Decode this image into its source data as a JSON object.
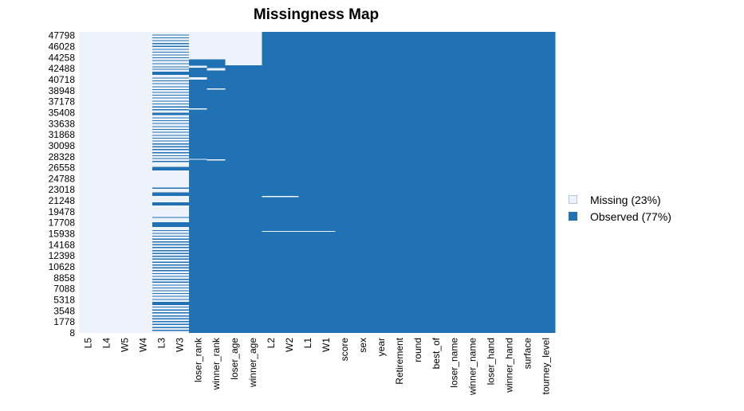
{
  "chart_data": {
    "type": "heatmap",
    "title": "Missingness Map",
    "xlabel": "",
    "ylabel": "",
    "columns": [
      "L5",
      "L4",
      "W5",
      "W4",
      "L3",
      "W3",
      "loser_rank",
      "winner_rank",
      "loser_age",
      "winner_age",
      "L2",
      "W2",
      "L1",
      "W1",
      "score",
      "sex",
      "year",
      "Retirement",
      "round",
      "best_of",
      "loser_name",
      "winner_name",
      "loser_hand",
      "winner_hand",
      "surface",
      "tourney_level"
    ],
    "row_range": [
      1,
      48400
    ],
    "ytick_labels": [
      "47798",
      "46028",
      "44258",
      "42488",
      "40718",
      "38948",
      "37178",
      "35408",
      "33638",
      "31868",
      "30098",
      "28328",
      "26558",
      "24788",
      "23018",
      "21248",
      "19478",
      "17708",
      "15938",
      "14168",
      "12398",
      "10628",
      "8858",
      "7088",
      "5318",
      "3548",
      "1778",
      "8"
    ],
    "colors": {
      "missing": "#edf2fb",
      "observed": "#2171b5"
    },
    "legend": {
      "position": "right",
      "entries": [
        {
          "key": "missing",
          "label": "Missing (23%)"
        },
        {
          "key": "observed",
          "label": "Observed (77%)"
        }
      ]
    },
    "fully_missing_columns": [
      "L5",
      "L4",
      "W5",
      "W4"
    ],
    "missing_ranges": [
      {
        "column": "loser_rank",
        "ranges": [
          [
            44000,
            48400
          ],
          [
            42650,
            42950
          ],
          [
            40700,
            41100
          ],
          [
            35950,
            36100
          ],
          [
            27900,
            28000
          ]
        ]
      },
      {
        "column": "winner_rank",
        "ranges": [
          [
            44000,
            48400
          ],
          [
            42200,
            42600
          ],
          [
            39200,
            39300
          ],
          [
            27800,
            27900
          ]
        ]
      },
      {
        "column": "loser_age",
        "ranges": [
          [
            43000,
            48400
          ]
        ]
      },
      {
        "column": "winner_age",
        "ranges": [
          [
            43000,
            48400
          ]
        ]
      },
      {
        "column": "L2",
        "ranges": [
          [
            21900,
            22000
          ],
          [
            16300,
            16400
          ]
        ]
      },
      {
        "column": "W2",
        "ranges": [
          [
            21900,
            22000
          ],
          [
            16300,
            16400
          ]
        ]
      },
      {
        "column": "L1",
        "ranges": [
          [
            16300,
            16400
          ]
        ]
      },
      {
        "column": "W1",
        "ranges": [
          [
            16300,
            16400
          ]
        ]
      }
    ],
    "observed_ranges": [
      {
        "column": "L3",
        "ranges": [
          [
            47800,
            47950
          ],
          [
            47350,
            47500
          ],
          [
            46900,
            47050
          ],
          [
            46450,
            46600
          ],
          [
            46000,
            46150
          ],
          [
            45500,
            45650
          ],
          [
            45050,
            45200
          ],
          [
            44600,
            44750
          ],
          [
            44150,
            44300
          ],
          [
            43700,
            43850
          ],
          [
            43200,
            43350
          ],
          [
            42700,
            42850
          ],
          [
            42300,
            42450
          ],
          [
            41500,
            42000
          ],
          [
            40900,
            41050
          ],
          [
            40450,
            40600
          ],
          [
            40000,
            40150
          ],
          [
            39500,
            39650
          ],
          [
            39050,
            39200
          ],
          [
            38600,
            38750
          ],
          [
            38150,
            38300
          ],
          [
            37700,
            37850
          ],
          [
            37200,
            37350
          ],
          [
            36750,
            36900
          ],
          [
            36250,
            36400
          ],
          [
            35800,
            35950
          ],
          [
            35000,
            35400
          ],
          [
            34500,
            34650
          ],
          [
            34050,
            34200
          ],
          [
            33600,
            33750
          ],
          [
            33100,
            33250
          ],
          [
            32650,
            32800
          ],
          [
            32200,
            32350
          ],
          [
            31700,
            31850
          ],
          [
            31250,
            31400
          ],
          [
            30800,
            30950
          ],
          [
            30300,
            30450
          ],
          [
            29850,
            30000
          ],
          [
            29400,
            29550
          ],
          [
            28900,
            29050
          ],
          [
            28400,
            28550
          ],
          [
            27950,
            28100
          ],
          [
            27500,
            27650
          ],
          [
            26100,
            26700
          ],
          [
            23200,
            23350
          ],
          [
            22000,
            22600
          ],
          [
            20500,
            21000
          ],
          [
            18500,
            18650
          ],
          [
            17000,
            17800
          ],
          [
            16400,
            16550
          ],
          [
            15950,
            16100
          ],
          [
            15500,
            15650
          ],
          [
            15000,
            15150
          ],
          [
            14550,
            14700
          ],
          [
            14100,
            14250
          ],
          [
            13650,
            13800
          ],
          [
            13150,
            13300
          ],
          [
            12700,
            12850
          ],
          [
            12250,
            12400
          ],
          [
            11800,
            11950
          ],
          [
            11300,
            11450
          ],
          [
            10850,
            11000
          ],
          [
            10400,
            10550
          ],
          [
            9950,
            10100
          ],
          [
            9450,
            9600
          ],
          [
            9000,
            9150
          ],
          [
            8550,
            8700
          ],
          [
            8100,
            8250
          ],
          [
            7600,
            7750
          ],
          [
            7150,
            7300
          ],
          [
            6700,
            6850
          ],
          [
            6250,
            6400
          ],
          [
            5800,
            5950
          ],
          [
            5300,
            5450
          ],
          [
            4500,
            5000
          ],
          [
            4100,
            4250
          ],
          [
            3600,
            3750
          ],
          [
            3150,
            3300
          ],
          [
            2650,
            2800
          ],
          [
            2200,
            2350
          ],
          [
            1750,
            1900
          ],
          [
            1300,
            1450
          ],
          [
            800,
            950
          ],
          [
            350,
            500
          ]
        ]
      },
      {
        "column": "W3",
        "ranges": [
          [
            47800,
            47950
          ],
          [
            47350,
            47500
          ],
          [
            46900,
            47050
          ],
          [
            46450,
            46600
          ],
          [
            46000,
            46150
          ],
          [
            45500,
            45650
          ],
          [
            45050,
            45200
          ],
          [
            44600,
            44750
          ],
          [
            44150,
            44300
          ],
          [
            43700,
            43850
          ],
          [
            43200,
            43350
          ],
          [
            42700,
            42850
          ],
          [
            42300,
            42450
          ],
          [
            41500,
            42000
          ],
          [
            40900,
            41050
          ],
          [
            40450,
            40600
          ],
          [
            40000,
            40150
          ],
          [
            39500,
            39650
          ],
          [
            39050,
            39200
          ],
          [
            38600,
            38750
          ],
          [
            38150,
            38300
          ],
          [
            37700,
            37850
          ],
          [
            37200,
            37350
          ],
          [
            36750,
            36900
          ],
          [
            36250,
            36400
          ],
          [
            35800,
            35950
          ],
          [
            35000,
            35400
          ],
          [
            34500,
            34650
          ],
          [
            34050,
            34200
          ],
          [
            33600,
            33750
          ],
          [
            33100,
            33250
          ],
          [
            32650,
            32800
          ],
          [
            32200,
            32350
          ],
          [
            31700,
            31850
          ],
          [
            31250,
            31400
          ],
          [
            30800,
            30950
          ],
          [
            30300,
            30450
          ],
          [
            29850,
            30000
          ],
          [
            29400,
            29550
          ],
          [
            28900,
            29050
          ],
          [
            28400,
            28550
          ],
          [
            27950,
            28100
          ],
          [
            27500,
            27650
          ],
          [
            26100,
            26700
          ],
          [
            23200,
            23350
          ],
          [
            22000,
            22600
          ],
          [
            20500,
            21000
          ],
          [
            18500,
            18650
          ],
          [
            17000,
            17800
          ],
          [
            16400,
            16550
          ],
          [
            15950,
            16100
          ],
          [
            15500,
            15650
          ],
          [
            15000,
            15150
          ],
          [
            14550,
            14700
          ],
          [
            14100,
            14250
          ],
          [
            13650,
            13800
          ],
          [
            13150,
            13300
          ],
          [
            12700,
            12850
          ],
          [
            12250,
            12400
          ],
          [
            11800,
            11950
          ],
          [
            11300,
            11450
          ],
          [
            10850,
            11000
          ],
          [
            10400,
            10550
          ],
          [
            9950,
            10100
          ],
          [
            9450,
            9600
          ],
          [
            9000,
            9150
          ],
          [
            8550,
            8700
          ],
          [
            8100,
            8250
          ],
          [
            7600,
            7750
          ],
          [
            7150,
            7300
          ],
          [
            6700,
            6850
          ],
          [
            6250,
            6400
          ],
          [
            5800,
            5950
          ],
          [
            5300,
            5450
          ],
          [
            4500,
            5000
          ],
          [
            4100,
            4250
          ],
          [
            3600,
            3750
          ],
          [
            3150,
            3300
          ],
          [
            2650,
            2800
          ],
          [
            2200,
            2350
          ],
          [
            1750,
            1900
          ],
          [
            1300,
            1450
          ],
          [
            800,
            950
          ],
          [
            350,
            500
          ]
        ]
      }
    ]
  }
}
